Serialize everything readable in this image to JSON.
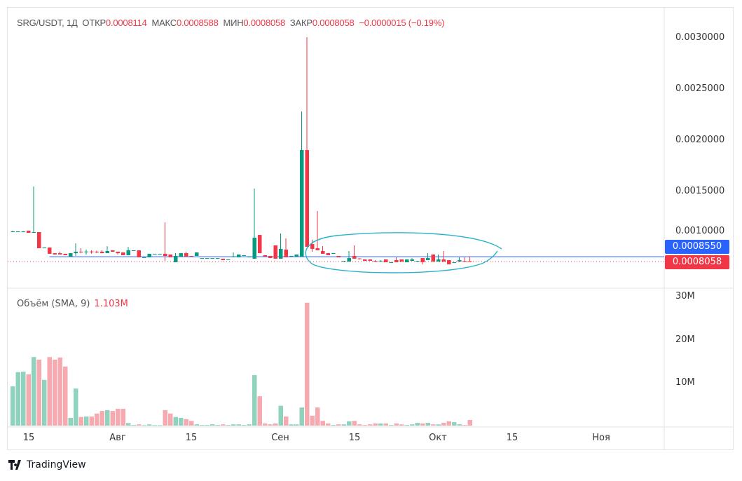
{
  "legend": {
    "symbol": "SRG/USDT, 1Д",
    "open_label": "ОТКР",
    "open": "0.0008114",
    "high_label": "МАКС",
    "high": "0.0008588",
    "low_label": "МИН",
    "low": "0.0008058",
    "close_label": "ЗАКР",
    "close": "0.0008058",
    "change": "−0.0000015 (−0.19%)"
  },
  "volume_legend": {
    "label": "Объём (SMA, 9)",
    "value": "1.103M"
  },
  "price_axis": [
    "0.0030000",
    "0.0025000",
    "0.0020000",
    "0.0015000",
    "0.0010000"
  ],
  "volume_axis": [
    "30M",
    "20M",
    "10M"
  ],
  "time_axis": [
    "15",
    "Авг",
    "15",
    "Сен",
    "15",
    "Окт",
    "15",
    "Ноя"
  ],
  "tags": {
    "line_price": "0.0008550",
    "last_price": "0.0008058"
  },
  "brand": "TradingView",
  "colors": {
    "up": "#089981",
    "down": "#f23645",
    "vol_up": "#8fd3bf",
    "vol_down": "#f7a9b0",
    "hline": "#2962ff",
    "drawing": "#2ab4cc"
  },
  "chart_data": {
    "type": "candlestick",
    "price_range": [
      0.00075,
      0.0031
    ],
    "volume_range_M": [
      0,
      30
    ],
    "hline": 0.000855,
    "last": 0.0008058,
    "ohlc": [
      [
        0.001103,
        0.00111,
        0.001096,
        0.001103
      ],
      [
        0.001103,
        0.001103,
        0.001096,
        0.001103
      ],
      [
        0.001103,
        0.001103,
        0.001096,
        0.001103
      ],
      [
        0.00111,
        0.00111,
        0.001089,
        0.001089
      ],
      [
        0.001089,
        0.001541,
        0.001089,
        0.001096
      ],
      [
        0.001096,
        0.001096,
        0.000938,
        0.000938
      ],
      [
        0.000938,
        0.000945,
        0.000938,
        0.000945
      ],
      [
        0.000945,
        0.000945,
        0.000884,
        0.000884
      ],
      [
        0.00089,
        0.00089,
        0.000877,
        0.000877
      ],
      [
        0.00089,
        0.000904,
        0.000877,
        0.000877
      ],
      [
        0.000884,
        0.000884,
        0.00087,
        0.00087
      ],
      [
        0.000856,
        0.00089,
        0.000856,
        0.00089
      ],
      [
        0.00089,
        0.000986,
        0.000863,
        0.000904
      ],
      [
        0.000904,
        0.000938,
        0.00089,
        0.000897
      ],
      [
        0.000904,
        0.000925,
        0.000877,
        0.000906
      ],
      [
        0.000906,
        0.000918,
        0.000884,
        0.000902
      ],
      [
        0.000904,
        0.000915,
        0.00089,
        0.0009
      ],
      [
        0.000904,
        0.000918,
        0.00089,
        0.00089
      ],
      [
        0.00089,
        0.000959,
        0.00089,
        0.000911
      ],
      [
        0.000918,
        0.000918,
        0.000904,
        0.000904
      ],
      [
        0.000904,
        0.000904,
        0.000877,
        0.00089
      ],
      [
        0.000897,
        0.000897,
        0.00087,
        0.00087
      ],
      [
        0.00087,
        0.000952,
        0.00087,
        0.000918
      ],
      [
        0.000918,
        0.000918,
        0.000918,
        0.000918
      ],
      [
        0.000918,
        0.000918,
        0.000849,
        0.000849
      ],
      [
        0.000849,
        0.000849,
        0.000849,
        0.000849
      ],
      [
        0.000849,
        0.000884,
        0.000849,
        0.000884
      ],
      [
        0.000884,
        0.000884,
        0.000884,
        0.000884
      ],
      [
        0.000884,
        0.000884,
        0.000884,
        0.000884
      ],
      [
        0.000884,
        0.001192,
        0.000815,
        0.000863
      ],
      [
        0.000877,
        0.000877,
        0.000849,
        0.000849
      ],
      [
        0.000801,
        0.00089,
        0.000801,
        0.000863
      ],
      [
        0.000856,
        0.00089,
        0.000856,
        0.00089
      ],
      [
        0.00089,
        0.000904,
        0.000856,
        0.000856
      ],
      [
        0.000863,
        0.000863,
        0.000856,
        0.000856
      ],
      [
        0.000863,
        0.000897,
        0.000863,
        0.000897
      ],
      [
        0.000842,
        0.000842,
        0.000842,
        0.000842
      ],
      [
        0.000842,
        0.000842,
        0.000842,
        0.000842
      ],
      [
        0.000842,
        0.000842,
        0.000842,
        0.000842
      ],
      [
        0.000842,
        0.000842,
        0.000842,
        0.000842
      ],
      [
        0.000836,
        0.000836,
        0.000822,
        0.000822
      ],
      [
        0.000829,
        0.000829,
        0.000829,
        0.000829
      ],
      [
        0.000856,
        0.000897,
        0.000849,
        0.000858
      ],
      [
        0.000849,
        0.000877,
        0.000849,
        0.000877
      ],
      [
        0.00087,
        0.00087,
        0.00087,
        0.00087
      ],
      [
        0.000849,
        0.000856,
        0.000849,
        0.000856
      ],
      [
        0.000836,
        0.001521,
        0.000836,
        0.001041
      ],
      [
        0.001068,
        0.001068,
        0.00089,
        0.00089
      ],
      [
        0.00087,
        0.00087,
        0.000856,
        0.000856
      ],
      [
        0.000863,
        0.000863,
        0.000842,
        0.000842
      ],
      [
        0.000966,
        0.000966,
        0.000836,
        0.000836
      ],
      [
        0.000836,
        0.001082,
        0.000836,
        0.000932
      ],
      [
        0.000925,
        0.001034,
        0.000849,
        0.000849
      ],
      [
        0.000856,
        0.000863,
        0.000856,
        0.000863
      ],
      [
        0.000856,
        0.000877,
        0.000856,
        0.000877
      ],
      [
        0.000856,
        0.002274,
        0.000856,
        0.001897
      ],
      [
        0.001897,
        0.003,
        0.000952,
        0.000952
      ],
      [
        0.000979,
        0.001021,
        0.000904,
        0.000932
      ],
      [
        0.000938,
        0.001301,
        0.000918,
        0.000918
      ],
      [
        0.000911,
        0.000959,
        0.000884,
        0.000884
      ],
      [
        0.00089,
        0.00089,
        0.00087,
        0.00087
      ],
      [
        0.000888,
        0.00089,
        0.000888,
        0.00089
      ],
      [
        0.000863,
        0.000863,
        0.000849,
        0.000849
      ],
      [
        0.000808,
        0.000815,
        0.000808,
        0.000815
      ],
      [
        0.000808,
        0.000911,
        0.000808,
        0.000842
      ],
      [
        0.000863,
        0.000966,
        0.000836,
        0.000836
      ],
      [
        0.000838,
        0.000842,
        0.00083,
        0.000834
      ],
      [
        0.000829,
        0.000829,
        0.000815,
        0.000815
      ],
      [
        0.000829,
        0.000829,
        0.000815,
        0.000815
      ],
      [
        0.000815,
        0.000822,
        0.000812,
        0.000814
      ],
      [
        0.000814,
        0.000822,
        0.000812,
        0.000816
      ],
      [
        0.000829,
        0.000829,
        0.000801,
        0.000801
      ],
      [
        0.000801,
        0.000801,
        0.000801,
        0.000801
      ],
      [
        0.000822,
        0.000849,
        0.000801,
        0.000801
      ],
      [
        0.000829,
        0.000829,
        0.000808,
        0.000808
      ],
      [
        0.000801,
        0.000829,
        0.000801,
        0.000829
      ],
      [
        0.000815,
        0.000842,
        0.000815,
        0.000829
      ],
      [
        0.000808,
        0.000815,
        0.000808,
        0.000815
      ],
      [
        0.000842,
        0.000842,
        0.000781,
        0.000801
      ],
      [
        0.000822,
        0.00089,
        0.000822,
        0.000842
      ],
      [
        0.000877,
        0.000877,
        0.000808,
        0.000808
      ],
      [
        0.000808,
        0.000877,
        0.000808,
        0.000829
      ],
      [
        0.000829,
        0.000911,
        0.000808,
        0.000808
      ],
      [
        0.000822,
        0.000822,
        0.000781,
        0.000781
      ],
      [
        0.000795,
        0.000801,
        0.000795,
        0.000801
      ],
      [
        0.000808,
        0.000849,
        0.000808,
        0.000822
      ],
      [
        0.000815,
        0.000849,
        0.000808,
        0.000808
      ],
      [
        0.0008114,
        0.0008588,
        0.0008058,
        0.0008058
      ]
    ],
    "volume_M": [
      9.1,
      12.4,
      12.5,
      11.9,
      15.9,
      15.3,
      10.6,
      15.9,
      15.3,
      15.8,
      13.7,
      1.8,
      8.6,
      2.0,
      2.1,
      2.1,
      2.8,
      3.4,
      3.6,
      3.4,
      3.9,
      3.9,
      0.6,
      0.15,
      0.3,
      0.1,
      0.3,
      0.1,
      0.1,
      3.6,
      2.8,
      2.0,
      1.8,
      1.5,
      1.1,
      0.3,
      0.15,
      0.15,
      0.3,
      0.15,
      0.3,
      0.15,
      0.3,
      0.3,
      0.15,
      0.3,
      11.7,
      6.8,
      0.5,
      0.3,
      0.5,
      4.6,
      2.1,
      0.3,
      0.3,
      4.2,
      28.5,
      2.3,
      4.2,
      1.1,
      0.5,
      0.15,
      0.3,
      0.3,
      1.0,
      1.1,
      0.3,
      0.15,
      0.3,
      0.5,
      0.5,
      0.5,
      0.15,
      0.5,
      0.3,
      0.15,
      0.3,
      0.65,
      0.5,
      0.65,
      0.3,
      0.3,
      0.65,
      1.0,
      0.8,
      0.3,
      0.15,
      1.3
    ]
  }
}
